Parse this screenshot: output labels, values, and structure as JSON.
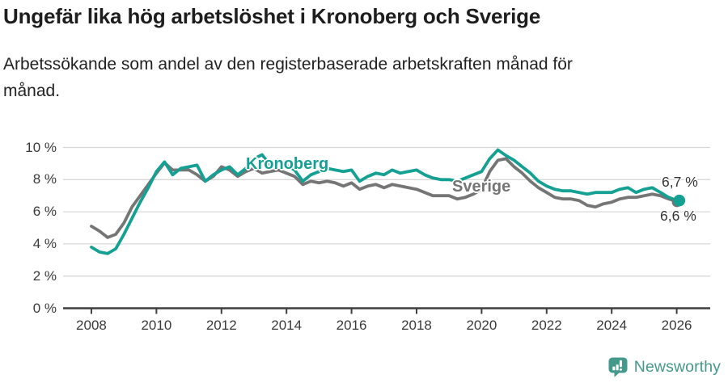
{
  "title": "Ungefär lika hög arbetslöshet i Kronoberg och Sverige",
  "subtitle": "Arbetssökande som andel av den registerbaserade arbetskraften månad för månad.",
  "colors": {
    "kronoberg": "#14a092",
    "sverige": "#757575",
    "grid": "#d8d8d8",
    "axis": "#3f3f3f",
    "tick_text": "#3a3a3a",
    "title_text": "#1e1e1e",
    "end_label_text": "#333333",
    "logo": "#45998c",
    "background": "#ffffff"
  },
  "chart_data": {
    "type": "line",
    "title": "Ungefär lika hög arbetslöshet i Kronoberg och Sverige",
    "subtitle": "Arbetssökande som andel av den registerbaserade arbetskraften månad för månad.",
    "xlabel": "",
    "ylabel": "",
    "xlim": [
      2007.13,
      2027.03
    ],
    "ylim": [
      0,
      10
    ],
    "grid": "horizontal",
    "legend_position": "inline-labels",
    "xticks": [
      2008,
      2010,
      2012,
      2014,
      2016,
      2018,
      2020,
      2022,
      2024,
      2026
    ],
    "xtick_labels": [
      "2008",
      "2010",
      "2012",
      "2014",
      "2016",
      "2018",
      "2020",
      "2022",
      "2024",
      "2026"
    ],
    "yticks": [
      0,
      2,
      4,
      6,
      8,
      10
    ],
    "ytick_labels": [
      "0 %",
      "2 %",
      "4 %",
      "6 %",
      "8 %",
      "10 %"
    ],
    "x": [
      2008.0,
      2008.25,
      2008.5,
      2008.75,
      2009.0,
      2009.25,
      2009.5,
      2009.75,
      2010.0,
      2010.25,
      2010.5,
      2010.75,
      2011.0,
      2011.25,
      2011.5,
      2011.75,
      2012.0,
      2012.25,
      2012.5,
      2012.75,
      2013.0,
      2013.25,
      2013.5,
      2013.75,
      2014.0,
      2014.25,
      2014.5,
      2014.75,
      2015.0,
      2015.25,
      2015.5,
      2015.75,
      2016.0,
      2016.25,
      2016.5,
      2016.75,
      2017.0,
      2017.25,
      2017.5,
      2017.75,
      2018.0,
      2018.25,
      2018.5,
      2018.75,
      2019.0,
      2019.25,
      2019.5,
      2019.75,
      2020.0,
      2020.25,
      2020.5,
      2020.75,
      2021.0,
      2021.25,
      2021.5,
      2021.75,
      2022.0,
      2022.25,
      2022.5,
      2022.75,
      2023.0,
      2023.25,
      2023.5,
      2023.75,
      2024.0,
      2024.25,
      2024.5,
      2024.75,
      2025.0,
      2025.25,
      2025.5,
      2025.75,
      2026.0,
      2026.08
    ],
    "series": [
      {
        "name": "Kronoberg",
        "color": "#14a092",
        "end_label": "6,7 %",
        "end_value": 6.7,
        "end_dot": true,
        "values": [
          3.8,
          3.5,
          3.4,
          3.7,
          4.6,
          5.6,
          6.6,
          7.5,
          8.5,
          9.1,
          8.3,
          8.7,
          8.8,
          8.9,
          7.9,
          8.3,
          8.6,
          8.8,
          8.3,
          8.7,
          9.3,
          9.55,
          8.9,
          9.2,
          8.9,
          8.6,
          7.9,
          8.3,
          8.5,
          8.7,
          8.6,
          8.5,
          8.6,
          7.9,
          8.2,
          8.4,
          8.3,
          8.6,
          8.4,
          8.5,
          8.6,
          8.3,
          8.1,
          8.0,
          8.0,
          7.9,
          8.1,
          8.3,
          8.5,
          9.3,
          9.85,
          9.5,
          9.2,
          8.8,
          8.4,
          7.9,
          7.6,
          7.4,
          7.3,
          7.3,
          7.2,
          7.1,
          7.2,
          7.2,
          7.2,
          7.4,
          7.5,
          7.2,
          7.4,
          7.5,
          7.2,
          6.9,
          6.7,
          6.7
        ]
      },
      {
        "name": "Sverige",
        "color": "#757575",
        "end_label": "6,6 %",
        "end_value": 6.6,
        "end_dot": true,
        "values": [
          5.1,
          4.8,
          4.4,
          4.6,
          5.3,
          6.3,
          7.0,
          7.7,
          8.4,
          9.05,
          8.6,
          8.6,
          8.6,
          8.3,
          7.9,
          8.2,
          8.8,
          8.6,
          8.2,
          8.5,
          8.7,
          8.4,
          8.5,
          8.6,
          8.4,
          8.2,
          7.7,
          7.9,
          7.8,
          7.9,
          7.8,
          7.6,
          7.8,
          7.4,
          7.6,
          7.7,
          7.5,
          7.7,
          7.6,
          7.5,
          7.4,
          7.2,
          7.0,
          7.0,
          7.0,
          6.8,
          6.9,
          7.1,
          7.4,
          8.5,
          9.2,
          9.3,
          8.8,
          8.4,
          7.9,
          7.5,
          7.2,
          6.9,
          6.8,
          6.8,
          6.7,
          6.4,
          6.3,
          6.5,
          6.6,
          6.8,
          6.9,
          6.9,
          7.0,
          7.1,
          7.0,
          6.8,
          6.65,
          6.6
        ]
      }
    ]
  },
  "annotations": {
    "kronoberg_inline_label": "Kronoberg",
    "sverige_inline_label": "Sverige",
    "end_value_top": "6,7 %",
    "end_value_bottom": "6,6 %"
  },
  "footer": {
    "brand": "Newsworthy"
  }
}
